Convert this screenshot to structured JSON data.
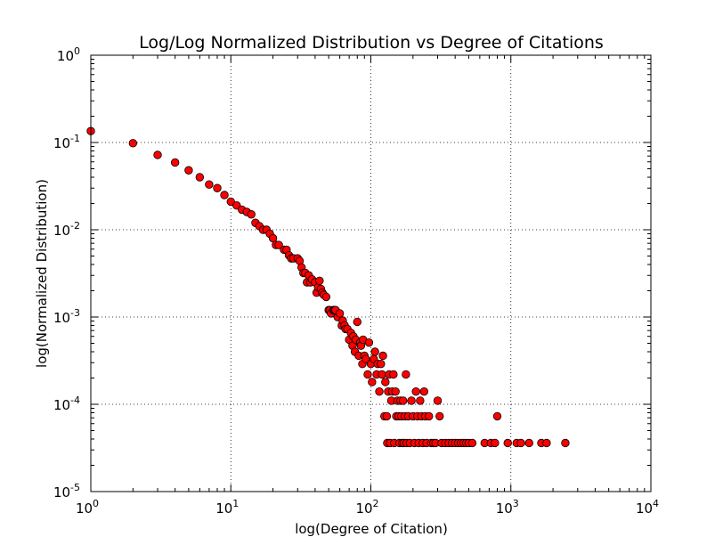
{
  "chart_data": {
    "type": "scatter",
    "title": "Log/Log Normalized Distribution vs Degree of Citations",
    "xlabel": "log(Degree of Citation)",
    "ylabel": "log(Normalized Distribution)",
    "xscale": "log",
    "yscale": "log",
    "xlim": [
      1,
      10000
    ],
    "ylim": [
      1e-05,
      1
    ],
    "grid": true,
    "x_tick_labels": [
      {
        "base": "10",
        "exp": "0",
        "value": 1
      },
      {
        "base": "10",
        "exp": "1",
        "value": 10
      },
      {
        "base": "10",
        "exp": "2",
        "value": 100
      },
      {
        "base": "10",
        "exp": "3",
        "value": 1000
      },
      {
        "base": "10",
        "exp": "4",
        "value": 10000
      }
    ],
    "y_tick_labels": [
      {
        "base": "10",
        "exp": "-5",
        "value": 1e-05
      },
      {
        "base": "10",
        "exp": "-4",
        "value": 0.0001
      },
      {
        "base": "10",
        "exp": "-3",
        "value": 0.001
      },
      {
        "base": "10",
        "exp": "-2",
        "value": 0.01
      },
      {
        "base": "10",
        "exp": "-1",
        "value": 0.1
      },
      {
        "base": "10",
        "exp": "0",
        "value": 1
      }
    ],
    "marker_color": "#ff0000",
    "marker_edge_color": "#000000",
    "points": [
      [
        1,
        0.135
      ],
      [
        2,
        0.098
      ],
      [
        3,
        0.072
      ],
      [
        4,
        0.059
      ],
      [
        5,
        0.048
      ],
      [
        6,
        0.04
      ],
      [
        7,
        0.033
      ],
      [
        8,
        0.03
      ],
      [
        9,
        0.025
      ],
      [
        10,
        0.021
      ],
      [
        11,
        0.019
      ],
      [
        12,
        0.017
      ],
      [
        13,
        0.016
      ],
      [
        14,
        0.015
      ],
      [
        15,
        0.012
      ],
      [
        16,
        0.011
      ],
      [
        17,
        0.01
      ],
      [
        18,
        0.01
      ],
      [
        19,
        0.009
      ],
      [
        20,
        0.008
      ],
      [
        21,
        0.0067
      ],
      [
        22,
        0.0067
      ],
      [
        24,
        0.0059
      ],
      [
        25,
        0.0059
      ],
      [
        26,
        0.0051
      ],
      [
        27,
        0.0047
      ],
      [
        28,
        0.0047
      ],
      [
        30,
        0.0047
      ],
      [
        31,
        0.0044
      ],
      [
        32,
        0.0037
      ],
      [
        33,
        0.0032
      ],
      [
        34,
        0.0032
      ],
      [
        35,
        0.0025
      ],
      [
        36,
        0.003
      ],
      [
        37,
        0.0025
      ],
      [
        38,
        0.0027
      ],
      [
        40,
        0.0025
      ],
      [
        41,
        0.0019
      ],
      [
        42,
        0.0022
      ],
      [
        43,
        0.0026
      ],
      [
        44,
        0.0021
      ],
      [
        45,
        0.0019
      ],
      [
        46,
        0.0018
      ],
      [
        48,
        0.0017
      ],
      [
        50,
        0.0012
      ],
      [
        51,
        0.0012
      ],
      [
        52,
        0.0011
      ],
      [
        54,
        0.0012
      ],
      [
        55,
        0.0012
      ],
      [
        56,
        0.0012
      ],
      [
        58,
        0.001
      ],
      [
        60,
        0.0011
      ],
      [
        62,
        0.0008
      ],
      [
        63,
        0.00091
      ],
      [
        65,
        0.0008
      ],
      [
        66,
        0.00073
      ],
      [
        68,
        0.00073
      ],
      [
        70,
        0.00055
      ],
      [
        72,
        0.00066
      ],
      [
        74,
        0.00047
      ],
      [
        75,
        0.0006
      ],
      [
        77,
        0.0004
      ],
      [
        78,
        0.00055
      ],
      [
        80,
        0.00088
      ],
      [
        82,
        0.00036
      ],
      [
        84,
        0.00051
      ],
      [
        85,
        0.00047
      ],
      [
        87,
        0.00029
      ],
      [
        88,
        0.00055
      ],
      [
        90,
        0.00036
      ],
      [
        92,
        0.00033
      ],
      [
        95,
        0.00022
      ],
      [
        97,
        0.00051
      ],
      [
        100,
        0.00029
      ],
      [
        102,
        0.00018
      ],
      [
        105,
        0.00033
      ],
      [
        107,
        0.0004
      ],
      [
        110,
        0.00022
      ],
      [
        112,
        0.00029
      ],
      [
        115,
        0.00014
      ],
      [
        118,
        0.00029
      ],
      [
        120,
        0.00022
      ],
      [
        122,
        0.00036
      ],
      [
        125,
        7.3e-05
      ],
      [
        127,
        0.00018
      ],
      [
        130,
        7.3e-05
      ],
      [
        131,
        3.6e-05
      ],
      [
        133,
        0.00014
      ],
      [
        135,
        0.00022
      ],
      [
        137,
        3.6e-05
      ],
      [
        140,
        0.00011
      ],
      [
        142,
        0.00014
      ],
      [
        145,
        0.00022
      ],
      [
        147,
        3.6e-05
      ],
      [
        150,
        0.00014
      ],
      [
        152,
        7.3e-05
      ],
      [
        155,
        0.00011
      ],
      [
        158,
        7.3e-05
      ],
      [
        160,
        3.6e-05
      ],
      [
        163,
        0.00011
      ],
      [
        165,
        7.3e-05
      ],
      [
        168,
        3.6e-05
      ],
      [
        170,
        0.00011
      ],
      [
        172,
        3.6e-05
      ],
      [
        175,
        7.3e-05
      ],
      [
        178,
        0.00022
      ],
      [
        180,
        3.6e-05
      ],
      [
        185,
        7.3e-05
      ],
      [
        190,
        3.6e-05
      ],
      [
        195,
        0.00011
      ],
      [
        200,
        7.3e-05
      ],
      [
        205,
        3.6e-05
      ],
      [
        210,
        0.00014
      ],
      [
        215,
        7.3e-05
      ],
      [
        220,
        3.6e-05
      ],
      [
        225,
        0.00011
      ],
      [
        230,
        7.3e-05
      ],
      [
        235,
        3.6e-05
      ],
      [
        240,
        0.00014
      ],
      [
        245,
        7.3e-05
      ],
      [
        250,
        3.6e-05
      ],
      [
        260,
        7.3e-05
      ],
      [
        270,
        3.6e-05
      ],
      [
        280,
        3.6e-05
      ],
      [
        290,
        3.6e-05
      ],
      [
        300,
        0.00011
      ],
      [
        310,
        7.3e-05
      ],
      [
        320,
        3.6e-05
      ],
      [
        340,
        3.6e-05
      ],
      [
        360,
        3.6e-05
      ],
      [
        380,
        3.6e-05
      ],
      [
        400,
        3.6e-05
      ],
      [
        420,
        3.6e-05
      ],
      [
        440,
        3.6e-05
      ],
      [
        460,
        3.6e-05
      ],
      [
        480,
        3.6e-05
      ],
      [
        500,
        3.6e-05
      ],
      [
        530,
        3.6e-05
      ],
      [
        650,
        3.6e-05
      ],
      [
        720,
        3.6e-05
      ],
      [
        770,
        3.6e-05
      ],
      [
        800,
        7.3e-05
      ],
      [
        950,
        3.6e-05
      ],
      [
        1100,
        3.6e-05
      ],
      [
        1180,
        3.6e-05
      ],
      [
        1350,
        3.6e-05
      ],
      [
        1650,
        3.6e-05
      ],
      [
        1800,
        3.6e-05
      ],
      [
        2450,
        3.6e-05
      ]
    ]
  }
}
